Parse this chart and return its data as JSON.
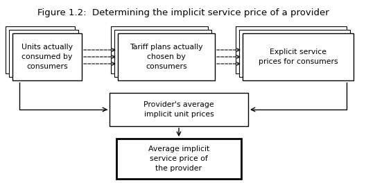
{
  "title": "Figure 1.2:  Determining the implicit service price of a provider",
  "title_fontsize": 9.5,
  "box1_text": "Units actually\nconsumed by\nconsumers",
  "box2_text": "Tariff plans actually\nchosen by\nconsumers",
  "box3_text": "Explicit service\nprices for consumers",
  "box4_text": "Provider's average\nimplicit unit prices",
  "box5_text": "Average implicit\nservice price of\nthe provider",
  "bg_color": "#ffffff",
  "box_facecolor": "#ffffff",
  "box_edgecolor": "#000000",
  "text_fontsize": 7.8
}
